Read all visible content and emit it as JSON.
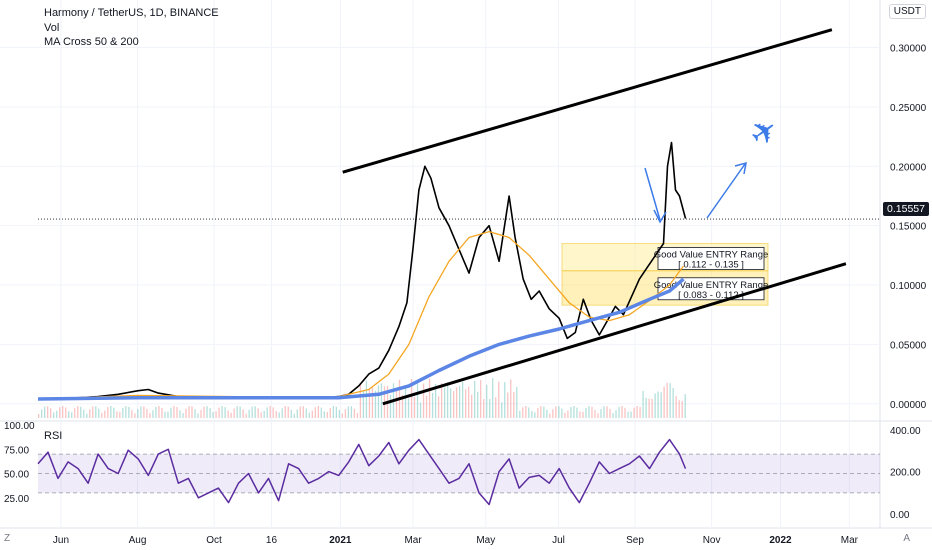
{
  "legend": {
    "title": "Harmony / TetherUS, 1D, BINANCE",
    "vol": "Vol",
    "ma": "MA Cross 50 & 200"
  },
  "currency_button": "USDT",
  "rsi_label": "RSI",
  "timezone_button": "Z",
  "auto_scale_button": "A",
  "last_price": "0.15557",
  "chart_data": [
    {
      "type": "line",
      "name": "price",
      "x_labels": [
        "Jun",
        "Aug",
        "Oct",
        "16",
        "2021",
        "Mar",
        "May",
        "Jul",
        "Sep",
        "Nov",
        "2022",
        "Mar"
      ],
      "y_ticks": [
        "0.30000",
        "0.25000",
        "0.20000",
        "0.15000",
        "0.10000",
        "0.05000",
        "0.00000"
      ],
      "ylim": [
        -0.012,
        0.335
      ],
      "series": [
        {
          "name": "OneUSDT",
          "color": "#000000",
          "points": [
            [
              0,
              0.004
            ],
            [
              10,
              0.004
            ],
            [
              20,
              0.005
            ],
            [
              30,
              0.006
            ],
            [
              40,
              0.008
            ],
            [
              50,
              0.011
            ],
            [
              55,
              0.012
            ],
            [
              60,
              0.009
            ],
            [
              70,
              0.006
            ],
            [
              80,
              0.005
            ],
            [
              90,
              0.005
            ],
            [
              100,
              0.005
            ],
            [
              110,
              0.005
            ],
            [
              120,
              0.005
            ],
            [
              130,
              0.005
            ],
            [
              140,
              0.005
            ],
            [
              150,
              0.006
            ],
            [
              155,
              0.008
            ],
            [
              160,
              0.015
            ],
            [
              165,
              0.025
            ],
            [
              170,
              0.03
            ],
            [
              175,
              0.045
            ],
            [
              180,
              0.065
            ],
            [
              184,
              0.085
            ],
            [
              187,
              0.13
            ],
            [
              190,
              0.18
            ],
            [
              193,
              0.2
            ],
            [
              196,
              0.19
            ],
            [
              200,
              0.165
            ],
            [
              205,
              0.15
            ],
            [
              210,
              0.13
            ],
            [
              215,
              0.11
            ],
            [
              220,
              0.14
            ],
            [
              225,
              0.15
            ],
            [
              230,
              0.12
            ],
            [
              235,
              0.175
            ],
            [
              238,
              0.14
            ],
            [
              242,
              0.105
            ],
            [
              246,
              0.088
            ],
            [
              250,
              0.095
            ],
            [
              255,
              0.08
            ],
            [
              260,
              0.072
            ],
            [
              264,
              0.055
            ],
            [
              268,
              0.06
            ],
            [
              272,
              0.088
            ],
            [
              276,
              0.07
            ],
            [
              280,
              0.058
            ],
            [
              284,
              0.07
            ],
            [
              288,
              0.082
            ],
            [
              292,
              0.075
            ],
            [
              296,
              0.09
            ],
            [
              300,
              0.105
            ],
            [
              304,
              0.115
            ],
            [
              308,
              0.125
            ],
            [
              312,
              0.135
            ],
            [
              314,
              0.2
            ],
            [
              316,
              0.22
            ],
            [
              318,
              0.18
            ],
            [
              320,
              0.175
            ],
            [
              323,
              0.156
            ]
          ]
        },
        {
          "name": "MA 50",
          "color": "#f5a623",
          "points": [
            [
              0,
              0.004
            ],
            [
              50,
              0.007
            ],
            [
              100,
              0.006
            ],
            [
              150,
              0.006
            ],
            [
              165,
              0.012
            ],
            [
              175,
              0.025
            ],
            [
              185,
              0.05
            ],
            [
              195,
              0.09
            ],
            [
              205,
              0.12
            ],
            [
              215,
              0.14
            ],
            [
              225,
              0.145
            ],
            [
              235,
              0.14
            ],
            [
              245,
              0.125
            ],
            [
              255,
              0.105
            ],
            [
              265,
              0.085
            ],
            [
              275,
              0.073
            ],
            [
              285,
              0.07
            ],
            [
              295,
              0.075
            ],
            [
              305,
              0.087
            ],
            [
              315,
              0.1
            ],
            [
              322,
              0.116
            ]
          ]
        },
        {
          "name": "MA 200",
          "color": "#5b86e5",
          "points": [
            [
              0,
              0.004
            ],
            [
              50,
              0.005
            ],
            [
              100,
              0.005
            ],
            [
              150,
              0.005
            ],
            [
              170,
              0.008
            ],
            [
              185,
              0.015
            ],
            [
              200,
              0.028
            ],
            [
              215,
              0.04
            ],
            [
              230,
              0.05
            ],
            [
              245,
              0.057
            ],
            [
              260,
              0.063
            ],
            [
              275,
              0.07
            ],
            [
              290,
              0.077
            ],
            [
              305,
              0.088
            ],
            [
              315,
              0.095
            ],
            [
              322,
              0.105
            ]
          ]
        }
      ],
      "trendlines": [
        {
          "from": [
            152,
            0.195
          ],
          "to": [
            396,
            0.315
          ],
          "color": "#000000"
        },
        {
          "from": [
            172,
            0.0
          ],
          "to": [
            403,
            0.118
          ],
          "color": "#000000"
        }
      ],
      "ranges": [
        {
          "label": "Good Value ENTRY Range",
          "range": "[ 0.112 - 0.135 ]",
          "y": [
            0.112,
            0.135
          ],
          "x": [
            276,
            378
          ]
        },
        {
          "label": "Good Value ENTRY Range",
          "range": "[ 0.083 - 0.112 ]",
          "y": [
            0.083,
            0.112
          ],
          "x": [
            276,
            378
          ]
        }
      ],
      "volume_scale_note": "volume bars at bottom of price pane"
    },
    {
      "type": "line",
      "name": "RSI",
      "color": "#5a2ca0",
      "y_ticks_left": [
        "100.00",
        "75.00",
        "50.00",
        "25.00"
      ],
      "y_ticks_right": [
        "400.00",
        "200.00",
        "0.00"
      ],
      "ylim": [
        0,
        100
      ],
      "band": [
        30,
        70
      ],
      "points": [
        [
          0,
          60
        ],
        [
          5,
          72
        ],
        [
          10,
          45
        ],
        [
          15,
          62
        ],
        [
          20,
          55
        ],
        [
          25,
          40
        ],
        [
          30,
          70
        ],
        [
          35,
          55
        ],
        [
          40,
          50
        ],
        [
          45,
          74
        ],
        [
          50,
          65
        ],
        [
          55,
          48
        ],
        [
          60,
          70
        ],
        [
          65,
          75
        ],
        [
          70,
          40
        ],
        [
          75,
          45
        ],
        [
          80,
          25
        ],
        [
          85,
          30
        ],
        [
          90,
          35
        ],
        [
          95,
          20
        ],
        [
          100,
          40
        ],
        [
          105,
          50
        ],
        [
          110,
          30
        ],
        [
          115,
          45
        ],
        [
          120,
          22
        ],
        [
          125,
          60
        ],
        [
          130,
          55
        ],
        [
          135,
          40
        ],
        [
          140,
          45
        ],
        [
          145,
          52
        ],
        [
          150,
          48
        ],
        [
          155,
          62
        ],
        [
          160,
          80
        ],
        [
          165,
          58
        ],
        [
          170,
          68
        ],
        [
          175,
          82
        ],
        [
          180,
          60
        ],
        [
          185,
          74
        ],
        [
          190,
          85
        ],
        [
          195,
          70
        ],
        [
          200,
          55
        ],
        [
          205,
          40
        ],
        [
          210,
          45
        ],
        [
          215,
          60
        ],
        [
          220,
          30
        ],
        [
          225,
          18
        ],
        [
          230,
          52
        ],
        [
          235,
          65
        ],
        [
          240,
          35
        ],
        [
          245,
          46
        ],
        [
          250,
          48
        ],
        [
          255,
          40
        ],
        [
          260,
          55
        ],
        [
          265,
          35
        ],
        [
          270,
          20
        ],
        [
          275,
          40
        ],
        [
          280,
          62
        ],
        [
          285,
          50
        ],
        [
          290,
          55
        ],
        [
          295,
          60
        ],
        [
          300,
          68
        ],
        [
          305,
          55
        ],
        [
          310,
          72
        ],
        [
          315,
          85
        ],
        [
          320,
          70
        ],
        [
          323,
          55
        ]
      ]
    }
  ]
}
